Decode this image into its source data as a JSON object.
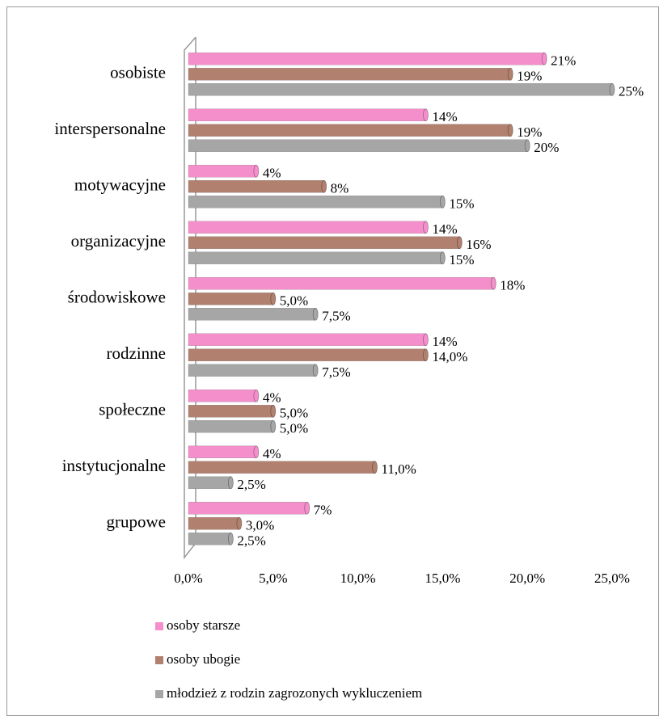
{
  "chart_data": {
    "type": "bar",
    "orientation": "horizontal",
    "categories": [
      "osobiste",
      "interspersonalne",
      "motywacyjne",
      "organizacyjne",
      "środowiskowe",
      "rodzinne",
      "społeczne",
      "instytucjonalne",
      "grupowe"
    ],
    "series": [
      {
        "name": "osoby starsze",
        "color": "#f58fcb",
        "values": [
          21,
          14,
          4,
          14,
          18,
          14,
          4,
          4,
          7
        ],
        "value_labels": [
          "21%",
          "14%",
          "4%",
          "14%",
          "18%",
          "14%",
          "4%",
          "4%",
          "7%"
        ]
      },
      {
        "name": "osoby ubogie",
        "color": "#b2806f",
        "values": [
          19,
          19,
          8,
          16,
          5,
          14,
          5,
          11,
          3
        ],
        "value_labels": [
          "19%",
          "19%",
          "8%",
          "16%",
          "5,0%",
          "14,0%",
          "5,0%",
          "11,0%",
          "3,0%"
        ]
      },
      {
        "name": "młodzież z rodzin zagrozonych wykluczeniem",
        "color": "#a6a6a6",
        "values": [
          25,
          20,
          15,
          15,
          7.5,
          7.5,
          5,
          2.5,
          2.5
        ],
        "value_labels": [
          "25%",
          "20%",
          "15%",
          "15%",
          "7,5%",
          "7,5%",
          "5,0%",
          "2,5%",
          "2,5%"
        ]
      }
    ],
    "xlim": [
      0,
      25
    ],
    "xticks": [
      {
        "value": 0,
        "label": "0,0%"
      },
      {
        "value": 5,
        "label": "5,0%"
      },
      {
        "value": 10,
        "label": "10,0%"
      },
      {
        "value": 15,
        "label": "15,0%"
      },
      {
        "value": 20,
        "label": "20,0%"
      },
      {
        "value": 25,
        "label": "25,0%"
      }
    ],
    "legend": "bottom"
  }
}
